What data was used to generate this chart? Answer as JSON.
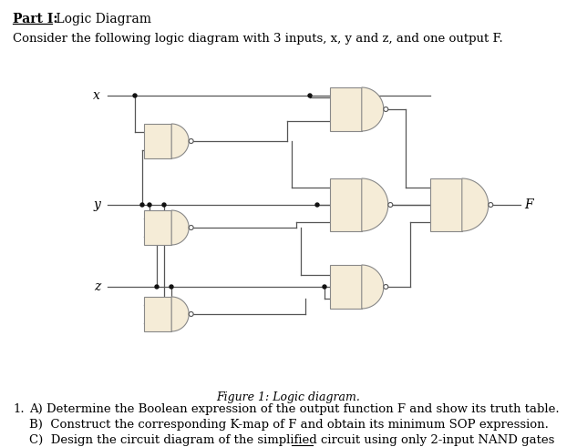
{
  "title_bold": "Part I:",
  "title_normal": " Logic Diagram",
  "subtitle": "Consider the following logic diagram with 3 inputs, x, y and z, and one output F.",
  "caption": "Figure 1: Logic diagram.",
  "gate_fill": "#f5ecd7",
  "gate_edge": "#888888",
  "wire_color": "#555555",
  "bg_color": "#ffffff",
  "dot_color": "#111111",
  "bubble_fill": "#ffffff",
  "bubble_edge": "#555555",
  "font_family": "serif",
  "lw": 0.9,
  "bubble_r": 0.025,
  "dot_r": 0.02
}
